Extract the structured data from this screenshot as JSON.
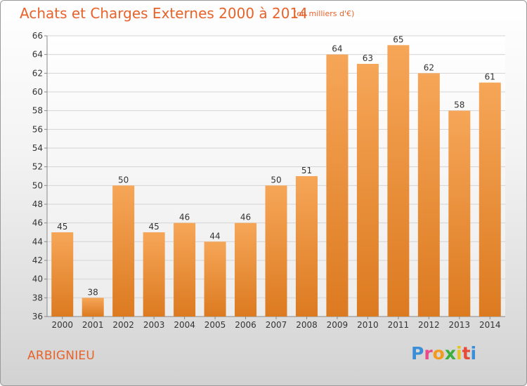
{
  "header": {
    "title": "Achats et Charges Externes 2000 à 2014",
    "subtitle": "(en milliers d'€)"
  },
  "commune": "ARBIGNIEU",
  "logo": {
    "text": "Proxiti",
    "letter_colors": [
      "#3a8fd8",
      "#e84a8a",
      "#f39a1c",
      "#3cae3c",
      "#e8c41a",
      "#e84a3a",
      "#3a8fd8"
    ]
  },
  "chart_data": {
    "type": "bar",
    "categories": [
      "2000",
      "2001",
      "2002",
      "2003",
      "2004",
      "2005",
      "2006",
      "2007",
      "2008",
      "2009",
      "2010",
      "2011",
      "2012",
      "2013",
      "2014"
    ],
    "values": [
      45,
      38,
      50,
      45,
      46,
      44,
      46,
      50,
      51,
      64,
      63,
      65,
      62,
      58,
      61
    ],
    "title": "Achats et Charges Externes 2000 à 2014",
    "ylim": [
      36,
      66
    ],
    "yticks": [
      36,
      38,
      40,
      42,
      44,
      46,
      48,
      50,
      52,
      54,
      56,
      58,
      60,
      62,
      64,
      66
    ],
    "grid": true,
    "bar_color_top": "#f6a658",
    "bar_color_bottom": "#dc7a20"
  }
}
